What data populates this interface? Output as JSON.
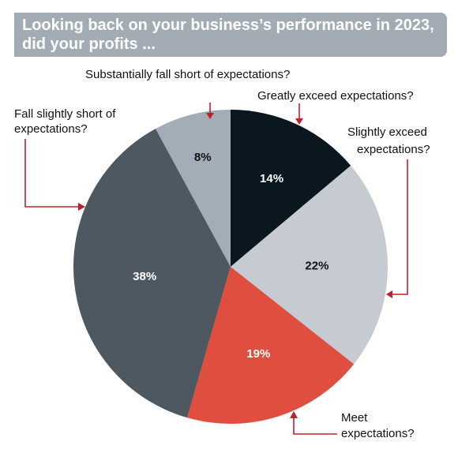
{
  "header": {
    "title_line1": "Looking back on your business’s performance in 2023,",
    "title_line2": "did your profits ..."
  },
  "colors": {
    "title_bg": "#a3acb5",
    "arrow": "#c0202a",
    "greatly_exceed": "#0b171f",
    "slightly_exceed": "#c5cbd1",
    "meet": "#e04e3f",
    "slightly_short": "#4d5860",
    "substantially_short": "#a3adb7"
  },
  "chart_data": {
    "type": "pie",
    "categories": [
      "Greatly exceed expectations?",
      "Slightly exceed expectations?",
      "Meet expectations?",
      "Fall slightly short of expectations?",
      "Substantially fall short of expectations?"
    ],
    "values": [
      14,
      22,
      19,
      38,
      8
    ],
    "data_labels": [
      "14%",
      "22%",
      "19%",
      "38%",
      "8%"
    ]
  },
  "callouts": {
    "greatly_exceed": "Greatly exceed expectations?",
    "slightly_exceed_1": "Slightly exceed",
    "slightly_exceed_2": "expectations?",
    "meet_1": "Meet",
    "meet_2": "expectations?",
    "slightly_short_1": "Fall slightly short of",
    "slightly_short_2": "expectations?",
    "substantially_short": "Substantially fall short of expectations?"
  }
}
